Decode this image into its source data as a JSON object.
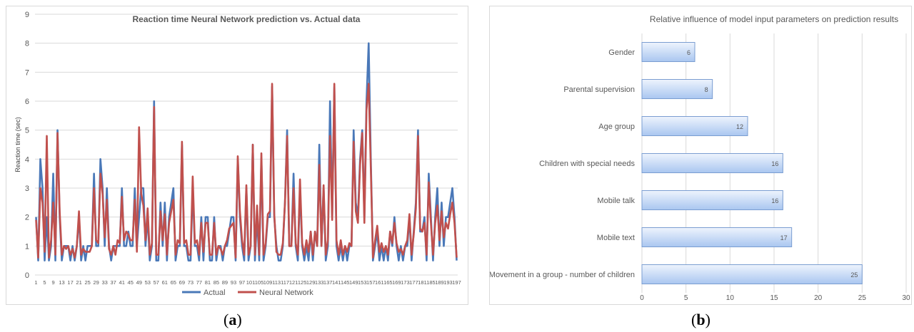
{
  "captions": {
    "a_open": "(",
    "a_letter": "a",
    "a_close": ")",
    "b_open": "(",
    "b_letter": "b",
    "b_close": ")"
  },
  "chart_data": [
    {
      "type": "line",
      "title": "Reaction time Neural  Network prediction  vs. Actual data",
      "xlabel": "",
      "ylabel": "Reaction time (sec)",
      "ylim": [
        0,
        9
      ],
      "yticks": [
        0,
        1,
        2,
        3,
        4,
        5,
        6,
        7,
        8,
        9
      ],
      "xtick_step": 4,
      "legend": "bottom",
      "grid": true,
      "colors": {
        "Actual": "#4a78b8",
        "Neural Network": "#c0504d"
      },
      "series": [
        {
          "name": "Actual",
          "values": [
            2,
            0.5,
            4,
            3,
            0.5,
            2,
            0.5,
            1,
            3.5,
            0.5,
            5,
            2,
            0.5,
            1,
            1,
            1,
            0.5,
            1,
            0.5,
            1,
            2,
            0.5,
            1,
            0.5,
            1,
            1,
            1,
            3.5,
            1,
            1,
            4,
            3,
            1,
            3,
            1,
            0.5,
            1,
            1,
            1,
            1,
            3,
            1,
            1,
            1.5,
            1,
            1,
            3,
            1,
            2,
            3,
            3,
            1,
            2,
            0.5,
            1,
            6,
            0.5,
            0.5,
            2.5,
            1,
            2.5,
            0.5,
            2,
            2.5,
            3,
            0.5,
            1,
            1,
            4.5,
            1,
            1,
            0.5,
            0.5,
            3,
            1,
            1,
            0.5,
            2,
            0.5,
            2,
            2,
            0.5,
            0.5,
            2,
            0.5,
            1,
            1,
            0.5,
            1,
            1,
            1.5,
            2,
            2,
            0.5,
            4,
            2,
            1,
            0.5,
            3,
            0.5,
            1,
            4.5,
            0.5,
            2,
            0.5,
            4,
            0.5,
            1,
            2,
            2,
            6.5,
            2,
            1,
            0.5,
            0.5,
            1,
            2.5,
            5,
            1,
            1,
            3.5,
            1,
            0.5,
            3,
            1,
            0.5,
            1,
            0.5,
            1.5,
            0.5,
            1.5,
            1,
            4.5,
            1,
            3,
            0.5,
            1,
            6,
            2,
            6.5,
            1,
            0.5,
            1,
            0.5,
            1,
            0.5,
            1,
            1,
            5,
            2.5,
            2,
            4,
            5,
            2,
            6,
            8,
            4,
            0.5,
            1,
            1.5,
            0.5,
            1,
            0.5,
            1,
            0.5,
            1.5,
            1,
            2,
            1,
            0.5,
            1,
            0.5,
            1,
            1,
            2,
            0.5,
            1.5,
            2.5,
            5,
            1.5,
            1.5,
            2,
            0.5,
            3.5,
            2,
            0.5,
            2,
            3,
            1,
            2.5,
            1,
            2,
            2,
            2.5,
            3,
            2,
            0.5
          ]
        },
        {
          "name": "Neural Network",
          "values": [
            1.9,
            0.6,
            3,
            2.5,
            0.8,
            4.8,
            0.6,
            1.2,
            2.5,
            0.7,
            4.9,
            2.2,
            0.7,
            1,
            0.9,
            1,
            0.7,
            0.9,
            0.6,
            1,
            2.2,
            0.7,
            0.9,
            0.8,
            0.8,
            0.8,
            1,
            3,
            1.2,
            1.1,
            3.5,
            2.8,
            1.3,
            2.6,
            0.9,
            0.7,
            1,
            0.7,
            1.2,
            1.1,
            2.7,
            1.2,
            1.5,
            1.4,
            1.2,
            1.2,
            2.6,
            0.8,
            5.1,
            2.8,
            2.4,
            1.2,
            2.3,
            0.7,
            1.1,
            5.8,
            0.7,
            0.7,
            2.2,
            1.2,
            2.1,
            0.7,
            1.8,
            2.2,
            2.6,
            0.7,
            1.2,
            1.1,
            4.6,
            1.1,
            1.2,
            0.7,
            0.7,
            3.4,
            1.1,
            1.2,
            0.7,
            1.8,
            0.8,
            1.8,
            1.8,
            0.7,
            0.7,
            1.8,
            0.7,
            1,
            0.9,
            0.7,
            1,
            1.2,
            1.6,
            1.7,
            1.8,
            0.6,
            4.1,
            2.2,
            1.2,
            0.7,
            3.1,
            0.7,
            1,
            4.5,
            0.7,
            2.4,
            0.7,
            4.2,
            0.7,
            1.1,
            2.1,
            2.2,
            6.6,
            2.1,
            0.8,
            0.7,
            0.7,
            1.1,
            2.5,
            4.8,
            1,
            1,
            3,
            1.1,
            0.7,
            3.3,
            1.1,
            0.7,
            1.2,
            0.8,
            1.5,
            0.7,
            1.5,
            1,
            3.8,
            1,
            3.1,
            0.7,
            1.2,
            4.8,
            1.9,
            6.6,
            1.2,
            0.7,
            1.2,
            0.7,
            1,
            0.8,
            1.1,
            1,
            4.6,
            2.2,
            1.8,
            3.8,
            4.9,
            1.8,
            5.7,
            6.6,
            3.7,
            0.6,
            1.2,
            1.7,
            0.8,
            1.1,
            0.8,
            1,
            0.7,
            1.5,
            1.1,
            1.8,
            1.1,
            0.8,
            0.9,
            0.7,
            1,
            1.2,
            2.1,
            0.7,
            1.4,
            2.3,
            4.8,
            1.6,
            1.5,
            1.8,
            0.7,
            3.2,
            1.8,
            0.7,
            1.8,
            2.4,
            1.2,
            2.2,
            1.3,
            1.8,
            1.6,
            2.1,
            2.5,
            1.8,
            0.6
          ]
        }
      ]
    },
    {
      "type": "bar",
      "orientation": "horizontal",
      "title": "Relative  influence  of model input parameters  on prediction results",
      "xlabel": "",
      "ylabel": "",
      "xlim": [
        0,
        30
      ],
      "xticks": [
        0,
        5,
        10,
        15,
        20,
        25,
        30
      ],
      "grid": true,
      "colors": {
        "bar_fill_top": "#eef4fd",
        "bar_fill_bottom": "#a9c6f0",
        "bar_stroke": "#7a9dd1"
      },
      "categories": [
        "Gender",
        "Parental supervision",
        "Age group",
        "Children with special needs",
        "Mobile talk",
        "Mobile text",
        "Movement in a group - number of children"
      ],
      "values": [
        6,
        8,
        12,
        16,
        16,
        17,
        25
      ]
    }
  ]
}
